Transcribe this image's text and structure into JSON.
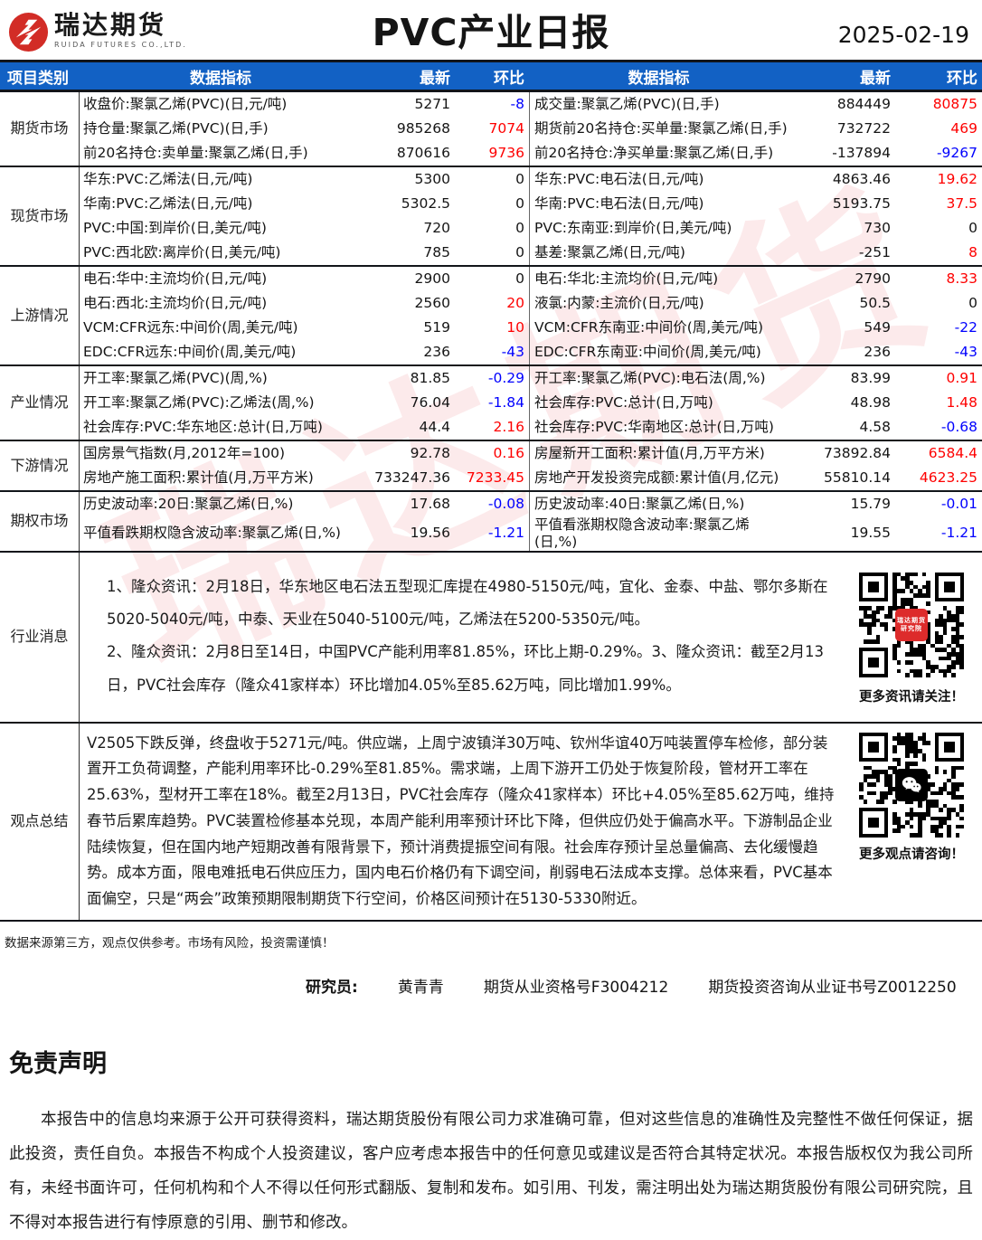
{
  "header": {
    "logo_cn": "瑞达期货",
    "logo_en": "RUIDA FUTURES CO.,LTD.",
    "title": "PVC产业日报",
    "date": "2025-02-19"
  },
  "colors": {
    "header_bg": "#1261c4",
    "up": "#fe0000",
    "down": "#0000fe",
    "logo_red": "#d22c26"
  },
  "table_head": {
    "category": "项目类别",
    "indicator": "数据指标",
    "latest": "最新",
    "chain": "环比"
  },
  "sections": [
    {
      "category": "期货市场",
      "rows": [
        {
          "l": {
            "t": "收盘价:聚氯乙烯(PVC)(日,元/吨)",
            "v": "5271",
            "c": "-8",
            "dir": "down"
          },
          "r": {
            "t": "成交量:聚氯乙烯(PVC)(日,手)",
            "v": "884449",
            "c": "80875",
            "dir": "up"
          }
        },
        {
          "l": {
            "t": "持仓量:聚氯乙烯(PVC)(日,手)",
            "v": "985268",
            "c": "7074",
            "dir": "up"
          },
          "r": {
            "t": "期货前20名持仓:买单量:聚氯乙烯(日,手)",
            "v": "732722",
            "c": "469",
            "dir": "up"
          }
        },
        {
          "l": {
            "t": "前20名持仓:卖单量:聚氯乙烯(日,手)",
            "v": "870616",
            "c": "9736",
            "dir": "up"
          },
          "r": {
            "t": "前20名持仓:净买单量:聚氯乙烯(日,手)",
            "v": "-137894",
            "c": "-9267",
            "dir": "down"
          }
        }
      ]
    },
    {
      "category": "现货市场",
      "rows": [
        {
          "l": {
            "t": "华东:PVC:乙烯法(日,元/吨)",
            "v": "5300",
            "c": "0",
            "dir": "flat"
          },
          "r": {
            "t": "华东:PVC:电石法(日,元/吨)",
            "v": "4863.46",
            "c": "19.62",
            "dir": "up"
          }
        },
        {
          "l": {
            "t": "华南:PVC:乙烯法(日,元/吨)",
            "v": "5302.5",
            "c": "0",
            "dir": "flat"
          },
          "r": {
            "t": "华南:PVC:电石法(日,元/吨)",
            "v": "5193.75",
            "c": "37.5",
            "dir": "up"
          }
        },
        {
          "l": {
            "t": "PVC:中国:到岸价(日,美元/吨)",
            "v": "720",
            "c": "0",
            "dir": "flat"
          },
          "r": {
            "t": "PVC:东南亚:到岸价(日,美元/吨)",
            "v": "730",
            "c": "0",
            "dir": "flat"
          }
        },
        {
          "l": {
            "t": "PVC:西北欧:离岸价(日,美元/吨)",
            "v": "785",
            "c": "0",
            "dir": "flat"
          },
          "r": {
            "t": "基差:聚氯乙烯(日,元/吨)",
            "v": "-251",
            "c": "8",
            "dir": "up"
          }
        }
      ]
    },
    {
      "category": "上游情况",
      "rows": [
        {
          "l": {
            "t": "电石:华中:主流均价(日,元/吨)",
            "v": "2900",
            "c": "0",
            "dir": "flat"
          },
          "r": {
            "t": "电石:华北:主流均价(日,元/吨)",
            "v": "2790",
            "c": "8.33",
            "dir": "up"
          }
        },
        {
          "l": {
            "t": "电石:西北:主流均价(日,元/吨)",
            "v": "2560",
            "c": "20",
            "dir": "up"
          },
          "r": {
            "t": "液氯:内蒙:主流价(日,元/吨)",
            "v": "50.5",
            "c": "0",
            "dir": "flat"
          }
        },
        {
          "l": {
            "t": "VCM:CFR远东:中间价(周,美元/吨)",
            "v": "519",
            "c": "10",
            "dir": "up"
          },
          "r": {
            "t": "VCM:CFR东南亚:中间价(周,美元/吨)",
            "v": "549",
            "c": "-22",
            "dir": "down"
          }
        },
        {
          "l": {
            "t": "EDC:CFR远东:中间价(周,美元/吨)",
            "v": "236",
            "c": "-43",
            "dir": "down"
          },
          "r": {
            "t": "EDC:CFR东南亚:中间价(周,美元/吨)",
            "v": "236",
            "c": "-43",
            "dir": "down"
          }
        }
      ]
    },
    {
      "category": "产业情况",
      "rows": [
        {
          "l": {
            "t": "开工率:聚氯乙烯(PVC)(周,%)",
            "v": "81.85",
            "c": "-0.29",
            "dir": "down"
          },
          "r": {
            "t": "开工率:聚氯乙烯(PVC):电石法(周,%)",
            "v": "83.99",
            "c": "0.91",
            "dir": "up"
          }
        },
        {
          "l": {
            "t": "开工率:聚氯乙烯(PVC):乙烯法(周,%)",
            "v": "76.04",
            "c": "-1.84",
            "dir": "down"
          },
          "r": {
            "t": "社会库存:PVC:总计(日,万吨)",
            "v": "48.98",
            "c": "1.48",
            "dir": "up"
          }
        },
        {
          "l": {
            "t": "社会库存:PVC:华东地区:总计(日,万吨)",
            "v": "44.4",
            "c": "2.16",
            "dir": "up"
          },
          "r": {
            "t": "社会库存:PVC:华南地区:总计(日,万吨)",
            "v": "4.58",
            "c": "-0.68",
            "dir": "down"
          }
        }
      ]
    },
    {
      "category": "下游情况",
      "rows": [
        {
          "l": {
            "t": "国房景气指数(月,2012年=100)",
            "v": "92.78",
            "c": "0.16",
            "dir": "up"
          },
          "r": {
            "t": "房屋新开工面积:累计值(月,万平方米)",
            "v": "73892.84",
            "c": "6584.4",
            "dir": "up"
          }
        },
        {
          "l": {
            "t": "房地产施工面积:累计值(月,万平方米)",
            "v": "733247.36",
            "c": "7233.45",
            "dir": "up"
          },
          "r": {
            "t": "房地产开发投资完成额:累计值(月,亿元)",
            "v": "55810.14",
            "c": "4623.25",
            "dir": "up"
          }
        }
      ]
    },
    {
      "category": "期权市场",
      "rows": [
        {
          "l": {
            "t": "历史波动率:20日:聚氯乙烯(日,%)",
            "v": "17.68",
            "c": "-0.08",
            "dir": "down"
          },
          "r": {
            "t": "历史波动率:40日:聚氯乙烯(日,%)",
            "v": "15.79",
            "c": "-0.01",
            "dir": "down"
          }
        },
        {
          "l": {
            "t": "平值看跌期权隐含波动率:聚氯乙烯(日,%)",
            "v": "19.56",
            "c": "-1.21",
            "dir": "down"
          },
          "r": {
            "t": "平值看涨期权隐含波动率:聚氯乙烯(日,%)",
            "v": "19.55",
            "c": "-1.21",
            "dir": "down"
          }
        }
      ]
    }
  ],
  "industry_news": {
    "category": "行业消息",
    "text": "1、隆众资讯：2月18日，华东地区电石法五型现汇库提在4980-5150元/吨，宜化、金泰、中盐、鄂尔多斯在5020-5040元/吨，中泰、天业在5040-5100元/吨，乙烯法在5200-5350元/吨。\n2、隆众资讯：2月8日至14日，中国PVC产能利用率81.85%，环比上期-0.29%。3、隆众资讯：截至2月13日，PVC社会库存（隆众41家样本）环比增加4.05%至85.62万吨，同比增加1.99%。",
    "qr_badge": [
      "瑞达期货",
      "研究院"
    ],
    "qr_caption": "更多资讯请关注！"
  },
  "summary": {
    "category": "观点总结",
    "text": "V2505下跌反弹，终盘收于5271元/吨。供应端，上周宁波镇洋30万吨、钦州华谊40万吨装置停车检修，部分装置开工负荷调整，产能利用率环比-0.29%至81.85%。需求端，上周下游开工仍处于恢复阶段，管材开工率在25.63%，型材开工率在18%。截至2月13日，PVC社会库存（隆众41家样本）环比+4.05%至85.62万吨，维持春节后累库趋势。PVC装置检修基本兑现，本周产能利用率预计环比下降，但供应仍处于偏高水平。下游制品企业陆续恢复，但在国内地产短期改善有限背景下，预计消费提振空间有限。社会库存预计呈总量偏高、去化缓慢趋势。成本方面，限电难抵电石供应压力，国内电石价格仍有下调空间，削弱电石法成本支撑。总体来看，PVC基本面偏空，只是“两会”政策预期限制期货下行空间，价格区间预计在5130-5330附近。",
    "qr_caption": "更多观点请咨询！"
  },
  "footer": {
    "note": "数据来源第三方，观点仅供参考。市场有风险，投资需谨慎！",
    "researcher_label": "研究员:",
    "researcher_name": "黄青青",
    "cert1": "期货从业资格号F3004212",
    "cert2": "期货投资咨询从业证书号Z0012250"
  },
  "disclaimer": {
    "title": "免责声明",
    "body": "本报告中的信息均来源于公开可获得资料，瑞达期货股份有限公司力求准确可靠，但对这些信息的准确性及完整性不做任何保证，据此投资，责任自负。本报告不构成个人投资建议，客户应考虑本报告中的任何意见或建议是否符合其特定状况。本报告版权仅为我公司所有，未经书面许可，任何机构和个人不得以任何形式翻版、复制和发布。如引用、刊发，需注明出处为瑞达期货股份有限公司研究院，且不得对本报告进行有悖原意的引用、删节和修改。"
  },
  "watermark": "瑞达期货"
}
